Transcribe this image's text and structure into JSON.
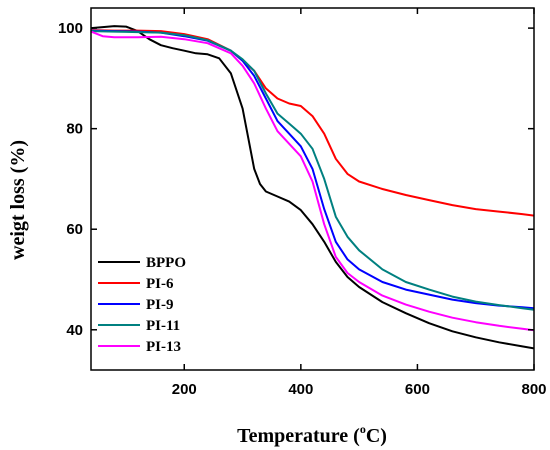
{
  "chart_data": {
    "type": "line",
    "title": "",
    "xlabel": "Temperature (°C)",
    "xlabel_parts": {
      "main": "Temperature (",
      "sup": "o",
      "end": "C)"
    },
    "ylabel": "weigt loss (%)",
    "xlim": [
      40,
      800
    ],
    "ylim": [
      32,
      104
    ],
    "x_ticks": [
      200,
      400,
      600,
      800
    ],
    "y_ticks": [
      40,
      60,
      80,
      100
    ],
    "grid": false,
    "legend_position": "bottom-left",
    "series": [
      {
        "name": "BPPO",
        "color": "#000000",
        "points": [
          [
            40,
            100.0
          ],
          [
            60,
            100.2
          ],
          [
            80,
            100.4
          ],
          [
            100,
            100.3
          ],
          [
            120,
            99.4
          ],
          [
            140,
            97.8
          ],
          [
            160,
            96.6
          ],
          [
            180,
            96.0
          ],
          [
            200,
            95.5
          ],
          [
            220,
            95.0
          ],
          [
            240,
            94.8
          ],
          [
            260,
            94.0
          ],
          [
            280,
            91.0
          ],
          [
            300,
            84.0
          ],
          [
            310,
            78.0
          ],
          [
            320,
            72.0
          ],
          [
            330,
            69.0
          ],
          [
            340,
            67.5
          ],
          [
            360,
            66.5
          ],
          [
            380,
            65.5
          ],
          [
            400,
            63.8
          ],
          [
            420,
            61.0
          ],
          [
            440,
            57.5
          ],
          [
            460,
            53.5
          ],
          [
            480,
            50.5
          ],
          [
            500,
            48.5
          ],
          [
            540,
            45.5
          ],
          [
            580,
            43.3
          ],
          [
            620,
            41.3
          ],
          [
            660,
            39.7
          ],
          [
            700,
            38.5
          ],
          [
            740,
            37.5
          ],
          [
            780,
            36.7
          ],
          [
            800,
            36.3
          ]
        ]
      },
      {
        "name": "PI-6",
        "color": "#ff0000",
        "points": [
          [
            40,
            99.6
          ],
          [
            80,
            99.5
          ],
          [
            120,
            99.5
          ],
          [
            160,
            99.4
          ],
          [
            200,
            98.8
          ],
          [
            240,
            97.8
          ],
          [
            280,
            95.5
          ],
          [
            300,
            93.5
          ],
          [
            320,
            91.5
          ],
          [
            340,
            88.0
          ],
          [
            360,
            86.0
          ],
          [
            380,
            85.0
          ],
          [
            400,
            84.5
          ],
          [
            420,
            82.5
          ],
          [
            440,
            79.0
          ],
          [
            460,
            74.0
          ],
          [
            480,
            71.0
          ],
          [
            500,
            69.5
          ],
          [
            540,
            68.0
          ],
          [
            580,
            66.8
          ],
          [
            620,
            65.8
          ],
          [
            660,
            64.8
          ],
          [
            700,
            64.0
          ],
          [
            740,
            63.5
          ],
          [
            780,
            63.0
          ],
          [
            800,
            62.7
          ]
        ]
      },
      {
        "name": "PI-9",
        "color": "#0000ff",
        "points": [
          [
            40,
            99.5
          ],
          [
            80,
            99.4
          ],
          [
            120,
            99.3
          ],
          [
            160,
            99.1
          ],
          [
            200,
            98.4
          ],
          [
            240,
            97.5
          ],
          [
            280,
            95.5
          ],
          [
            300,
            93.5
          ],
          [
            320,
            90.5
          ],
          [
            340,
            86.0
          ],
          [
            360,
            81.5
          ],
          [
            380,
            79.0
          ],
          [
            400,
            76.5
          ],
          [
            420,
            72.0
          ],
          [
            440,
            64.0
          ],
          [
            460,
            57.5
          ],
          [
            480,
            54.0
          ],
          [
            500,
            52.0
          ],
          [
            540,
            49.5
          ],
          [
            580,
            48.0
          ],
          [
            620,
            47.0
          ],
          [
            660,
            46.0
          ],
          [
            700,
            45.3
          ],
          [
            740,
            44.8
          ],
          [
            780,
            44.5
          ],
          [
            800,
            44.3
          ]
        ]
      },
      {
        "name": "PI-11",
        "color": "#008080",
        "points": [
          [
            40,
            99.4
          ],
          [
            80,
            99.3
          ],
          [
            120,
            99.2
          ],
          [
            160,
            99.1
          ],
          [
            200,
            98.6
          ],
          [
            240,
            97.6
          ],
          [
            280,
            95.5
          ],
          [
            300,
            93.8
          ],
          [
            320,
            91.5
          ],
          [
            340,
            87.0
          ],
          [
            360,
            83.0
          ],
          [
            380,
            81.0
          ],
          [
            400,
            79.0
          ],
          [
            420,
            76.0
          ],
          [
            440,
            70.0
          ],
          [
            460,
            62.5
          ],
          [
            480,
            58.5
          ],
          [
            500,
            55.8
          ],
          [
            540,
            52.0
          ],
          [
            580,
            49.5
          ],
          [
            620,
            48.0
          ],
          [
            660,
            46.6
          ],
          [
            700,
            45.6
          ],
          [
            740,
            44.9
          ],
          [
            780,
            44.3
          ],
          [
            800,
            44.0
          ]
        ]
      },
      {
        "name": "PI-13",
        "color": "#ff00ff",
        "points": [
          [
            40,
            99.3
          ],
          [
            60,
            98.4
          ],
          [
            80,
            98.2
          ],
          [
            120,
            98.2
          ],
          [
            160,
            98.3
          ],
          [
            200,
            97.8
          ],
          [
            240,
            97.0
          ],
          [
            280,
            95.0
          ],
          [
            300,
            92.5
          ],
          [
            320,
            89.0
          ],
          [
            340,
            84.0
          ],
          [
            360,
            79.5
          ],
          [
            380,
            77.0
          ],
          [
            400,
            74.5
          ],
          [
            420,
            69.5
          ],
          [
            440,
            61.0
          ],
          [
            460,
            54.5
          ],
          [
            480,
            51.3
          ],
          [
            500,
            49.5
          ],
          [
            540,
            46.8
          ],
          [
            580,
            45.0
          ],
          [
            620,
            43.6
          ],
          [
            660,
            42.4
          ],
          [
            700,
            41.5
          ],
          [
            740,
            40.8
          ],
          [
            780,
            40.2
          ],
          [
            800,
            39.9
          ]
        ]
      }
    ]
  }
}
